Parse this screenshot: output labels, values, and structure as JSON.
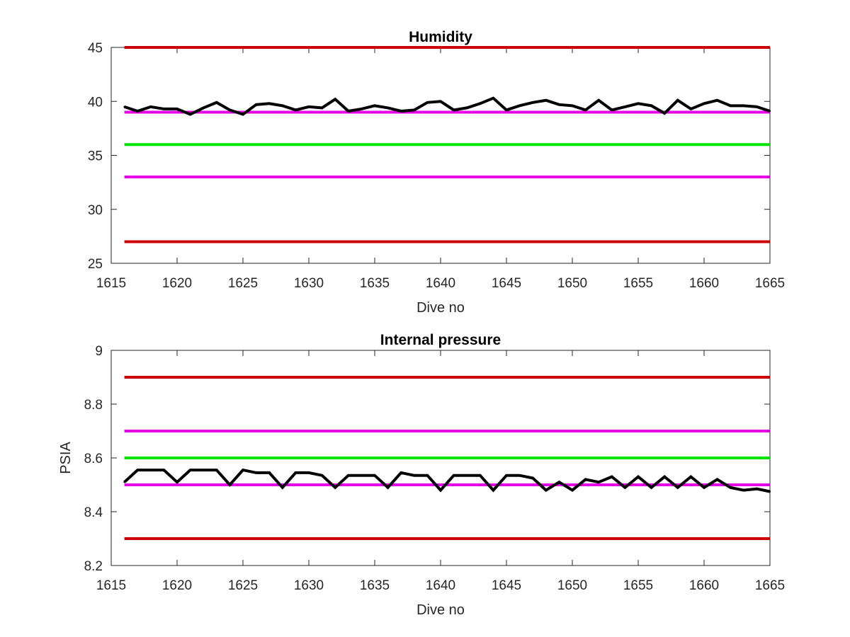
{
  "chart_data": [
    {
      "type": "line",
      "title": "Humidity",
      "xlabel": "Dive no",
      "ylabel": "",
      "xlim": [
        1615,
        1665
      ],
      "ylim": [
        25,
        45
      ],
      "xticks": [
        1615,
        1620,
        1625,
        1630,
        1635,
        1640,
        1645,
        1650,
        1655,
        1660,
        1665
      ],
      "yticks": [
        25,
        30,
        35,
        40,
        45
      ],
      "grid": false,
      "reference_lines": [
        {
          "y": 45,
          "color": "#cc0000"
        },
        {
          "y": 39,
          "color": "#e600e6"
        },
        {
          "y": 36,
          "color": "#00e600"
        },
        {
          "y": 33,
          "color": "#e600e6"
        },
        {
          "y": 27,
          "color": "#cc0000"
        }
      ],
      "series": [
        {
          "color": "#000000",
          "x": [
            1616,
            1617,
            1618,
            1619,
            1620,
            1621,
            1622,
            1623,
            1624,
            1625,
            1626,
            1627,
            1628,
            1629,
            1630,
            1631,
            1632,
            1633,
            1634,
            1635,
            1636,
            1637,
            1638,
            1639,
            1640,
            1641,
            1642,
            1643,
            1644,
            1645,
            1646,
            1647,
            1648,
            1649,
            1650,
            1651,
            1652,
            1653,
            1654,
            1655,
            1656,
            1657,
            1658,
            1659,
            1660,
            1661,
            1662,
            1663,
            1664,
            1665
          ],
          "y": [
            39.5,
            39.1,
            39.5,
            39.3,
            39.3,
            38.8,
            39.4,
            39.9,
            39.2,
            38.8,
            39.7,
            39.8,
            39.6,
            39.2,
            39.5,
            39.4,
            40.2,
            39.1,
            39.3,
            39.6,
            39.4,
            39.1,
            39.2,
            39.9,
            40.0,
            39.2,
            39.4,
            39.8,
            40.3,
            39.2,
            39.6,
            39.9,
            40.1,
            39.7,
            39.6,
            39.2,
            40.1,
            39.2,
            39.5,
            39.8,
            39.6,
            38.9,
            40.1,
            39.3,
            39.8,
            40.1,
            39.6,
            39.6,
            39.5,
            39.1
          ]
        }
      ]
    },
    {
      "type": "line",
      "title": "Internal pressure",
      "xlabel": "Dive no",
      "ylabel": "PSIA",
      "xlim": [
        1615,
        1665
      ],
      "ylim": [
        8.2,
        9
      ],
      "xticks": [
        1615,
        1620,
        1625,
        1630,
        1635,
        1640,
        1645,
        1650,
        1655,
        1660,
        1665
      ],
      "yticks": [
        8.2,
        8.4,
        8.6,
        8.8,
        9
      ],
      "grid": false,
      "reference_lines": [
        {
          "y": 8.9,
          "color": "#cc0000"
        },
        {
          "y": 8.7,
          "color": "#e600e6"
        },
        {
          "y": 8.6,
          "color": "#00e600"
        },
        {
          "y": 8.5,
          "color": "#e600e6"
        },
        {
          "y": 8.3,
          "color": "#cc0000"
        }
      ],
      "series": [
        {
          "color": "#000000",
          "x": [
            1616,
            1617,
            1618,
            1619,
            1620,
            1621,
            1622,
            1623,
            1624,
            1625,
            1626,
            1627,
            1628,
            1629,
            1630,
            1631,
            1632,
            1633,
            1634,
            1635,
            1636,
            1637,
            1638,
            1639,
            1640,
            1641,
            1642,
            1643,
            1644,
            1645,
            1646,
            1647,
            1648,
            1649,
            1650,
            1651,
            1652,
            1653,
            1654,
            1655,
            1656,
            1657,
            1658,
            1659,
            1660,
            1661,
            1662,
            1663,
            1664,
            1665
          ],
          "y": [
            8.51,
            8.555,
            8.555,
            8.555,
            8.51,
            8.555,
            8.555,
            8.555,
            8.5,
            8.555,
            8.545,
            8.545,
            8.49,
            8.545,
            8.545,
            8.535,
            8.49,
            8.535,
            8.535,
            8.535,
            8.49,
            8.545,
            8.535,
            8.535,
            8.48,
            8.535,
            8.535,
            8.535,
            8.48,
            8.535,
            8.535,
            8.525,
            8.48,
            8.51,
            8.48,
            8.52,
            8.51,
            8.53,
            8.49,
            8.53,
            8.49,
            8.53,
            8.49,
            8.53,
            8.49,
            8.52,
            8.49,
            8.48,
            8.485,
            8.475
          ]
        }
      ]
    }
  ]
}
